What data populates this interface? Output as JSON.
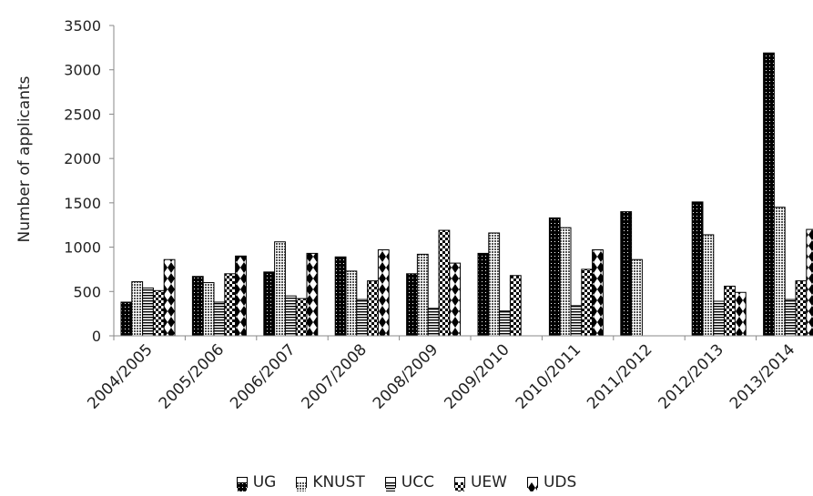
{
  "chart_data": {
    "type": "bar",
    "title": "",
    "xlabel": "",
    "ylabel": "Number of applicants",
    "ylim": [
      0,
      3500
    ],
    "yticks": [
      "0",
      "500",
      "1000",
      "1500",
      "2000",
      "2500",
      "3000",
      "3500"
    ],
    "grid": false,
    "legend_position": "bottom",
    "categories": [
      "2004/2005",
      "2005/2006",
      "2006/2007",
      "2007/2008",
      "2008/2009",
      "2009/2010",
      "2010/2011",
      "2011/2012",
      "2012/2013",
      "2013/2014"
    ],
    "series": [
      {
        "name": "UG",
        "pattern": "solid-dots",
        "values": [
          380,
          670,
          720,
          890,
          700,
          930,
          1330,
          1400,
          1510,
          3190
        ]
      },
      {
        "name": "KNUST",
        "pattern": "crosshatch",
        "values": [
          610,
          600,
          1060,
          730,
          920,
          1160,
          1220,
          860,
          1140,
          1450
        ]
      },
      {
        "name": "UCC",
        "pattern": "horizontal",
        "values": [
          540,
          380,
          450,
          410,
          310,
          280,
          340,
          0,
          390,
          410
        ]
      },
      {
        "name": "UEW",
        "pattern": "checker",
        "values": [
          510,
          700,
          420,
          620,
          1190,
          680,
          750,
          0,
          560,
          620
        ]
      },
      {
        "name": "UDS",
        "pattern": "diamond",
        "values": [
          860,
          900,
          930,
          970,
          820,
          0,
          970,
          0,
          490,
          1200
        ]
      }
    ]
  }
}
